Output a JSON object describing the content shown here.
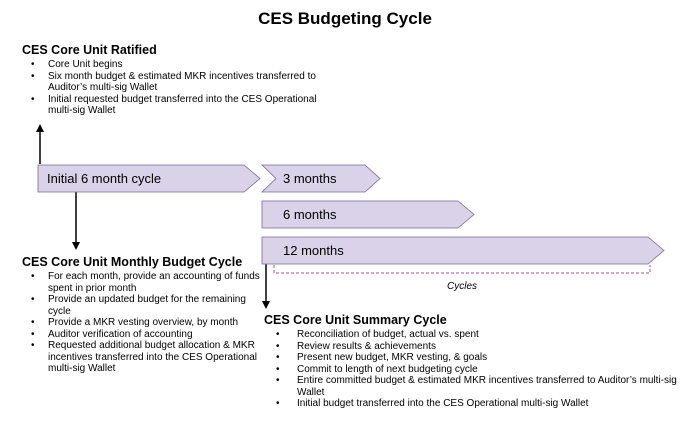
{
  "title": "CES Budgeting Cycle",
  "colors": {
    "arrow_fill": "#d9d2e9",
    "arrow_stroke": "#7a6a9a",
    "bracket": "#a64d9e"
  },
  "timeline": {
    "initial": "Initial 6 month cycle",
    "three": "3 months",
    "six": "6 months",
    "twelve": "12 months",
    "cycles": "Cycles"
  },
  "ratified": {
    "heading": "CES Core Unit Ratified",
    "items": [
      "Core Unit begins",
      "Six month budget & estimated MKR incentives transferred to Auditor’s multi-sig Wallet",
      "Initial requested budget transferred into the CES Operational multi-sig Wallet"
    ]
  },
  "monthly": {
    "heading": "CES Core Unit Monthly Budget Cycle",
    "items": [
      "For each month, provide an accounting of funds spent in prior month",
      "Provide an updated budget for the remaining cycle",
      "Provide a MKR vesting overview, by month",
      "Auditor verification of accounting",
      "Requested additional budget allocation & MKR incentives transferred into the CES Operational multi-sig Wallet"
    ]
  },
  "summary": {
    "heading": "CES Core Unit Summary Cycle",
    "items": [
      "Reconciliation of budget, actual vs. spent",
      "Review results & achievements",
      "Present new budget, MKR vesting, & goals",
      "Commit to length of next budgeting cycle",
      "Entire committed budget & estimated MKR incentives transferred to Auditor’s multi-sig Wallet",
      "Initial budget transferred into the CES Operational multi-sig Wallet"
    ]
  }
}
